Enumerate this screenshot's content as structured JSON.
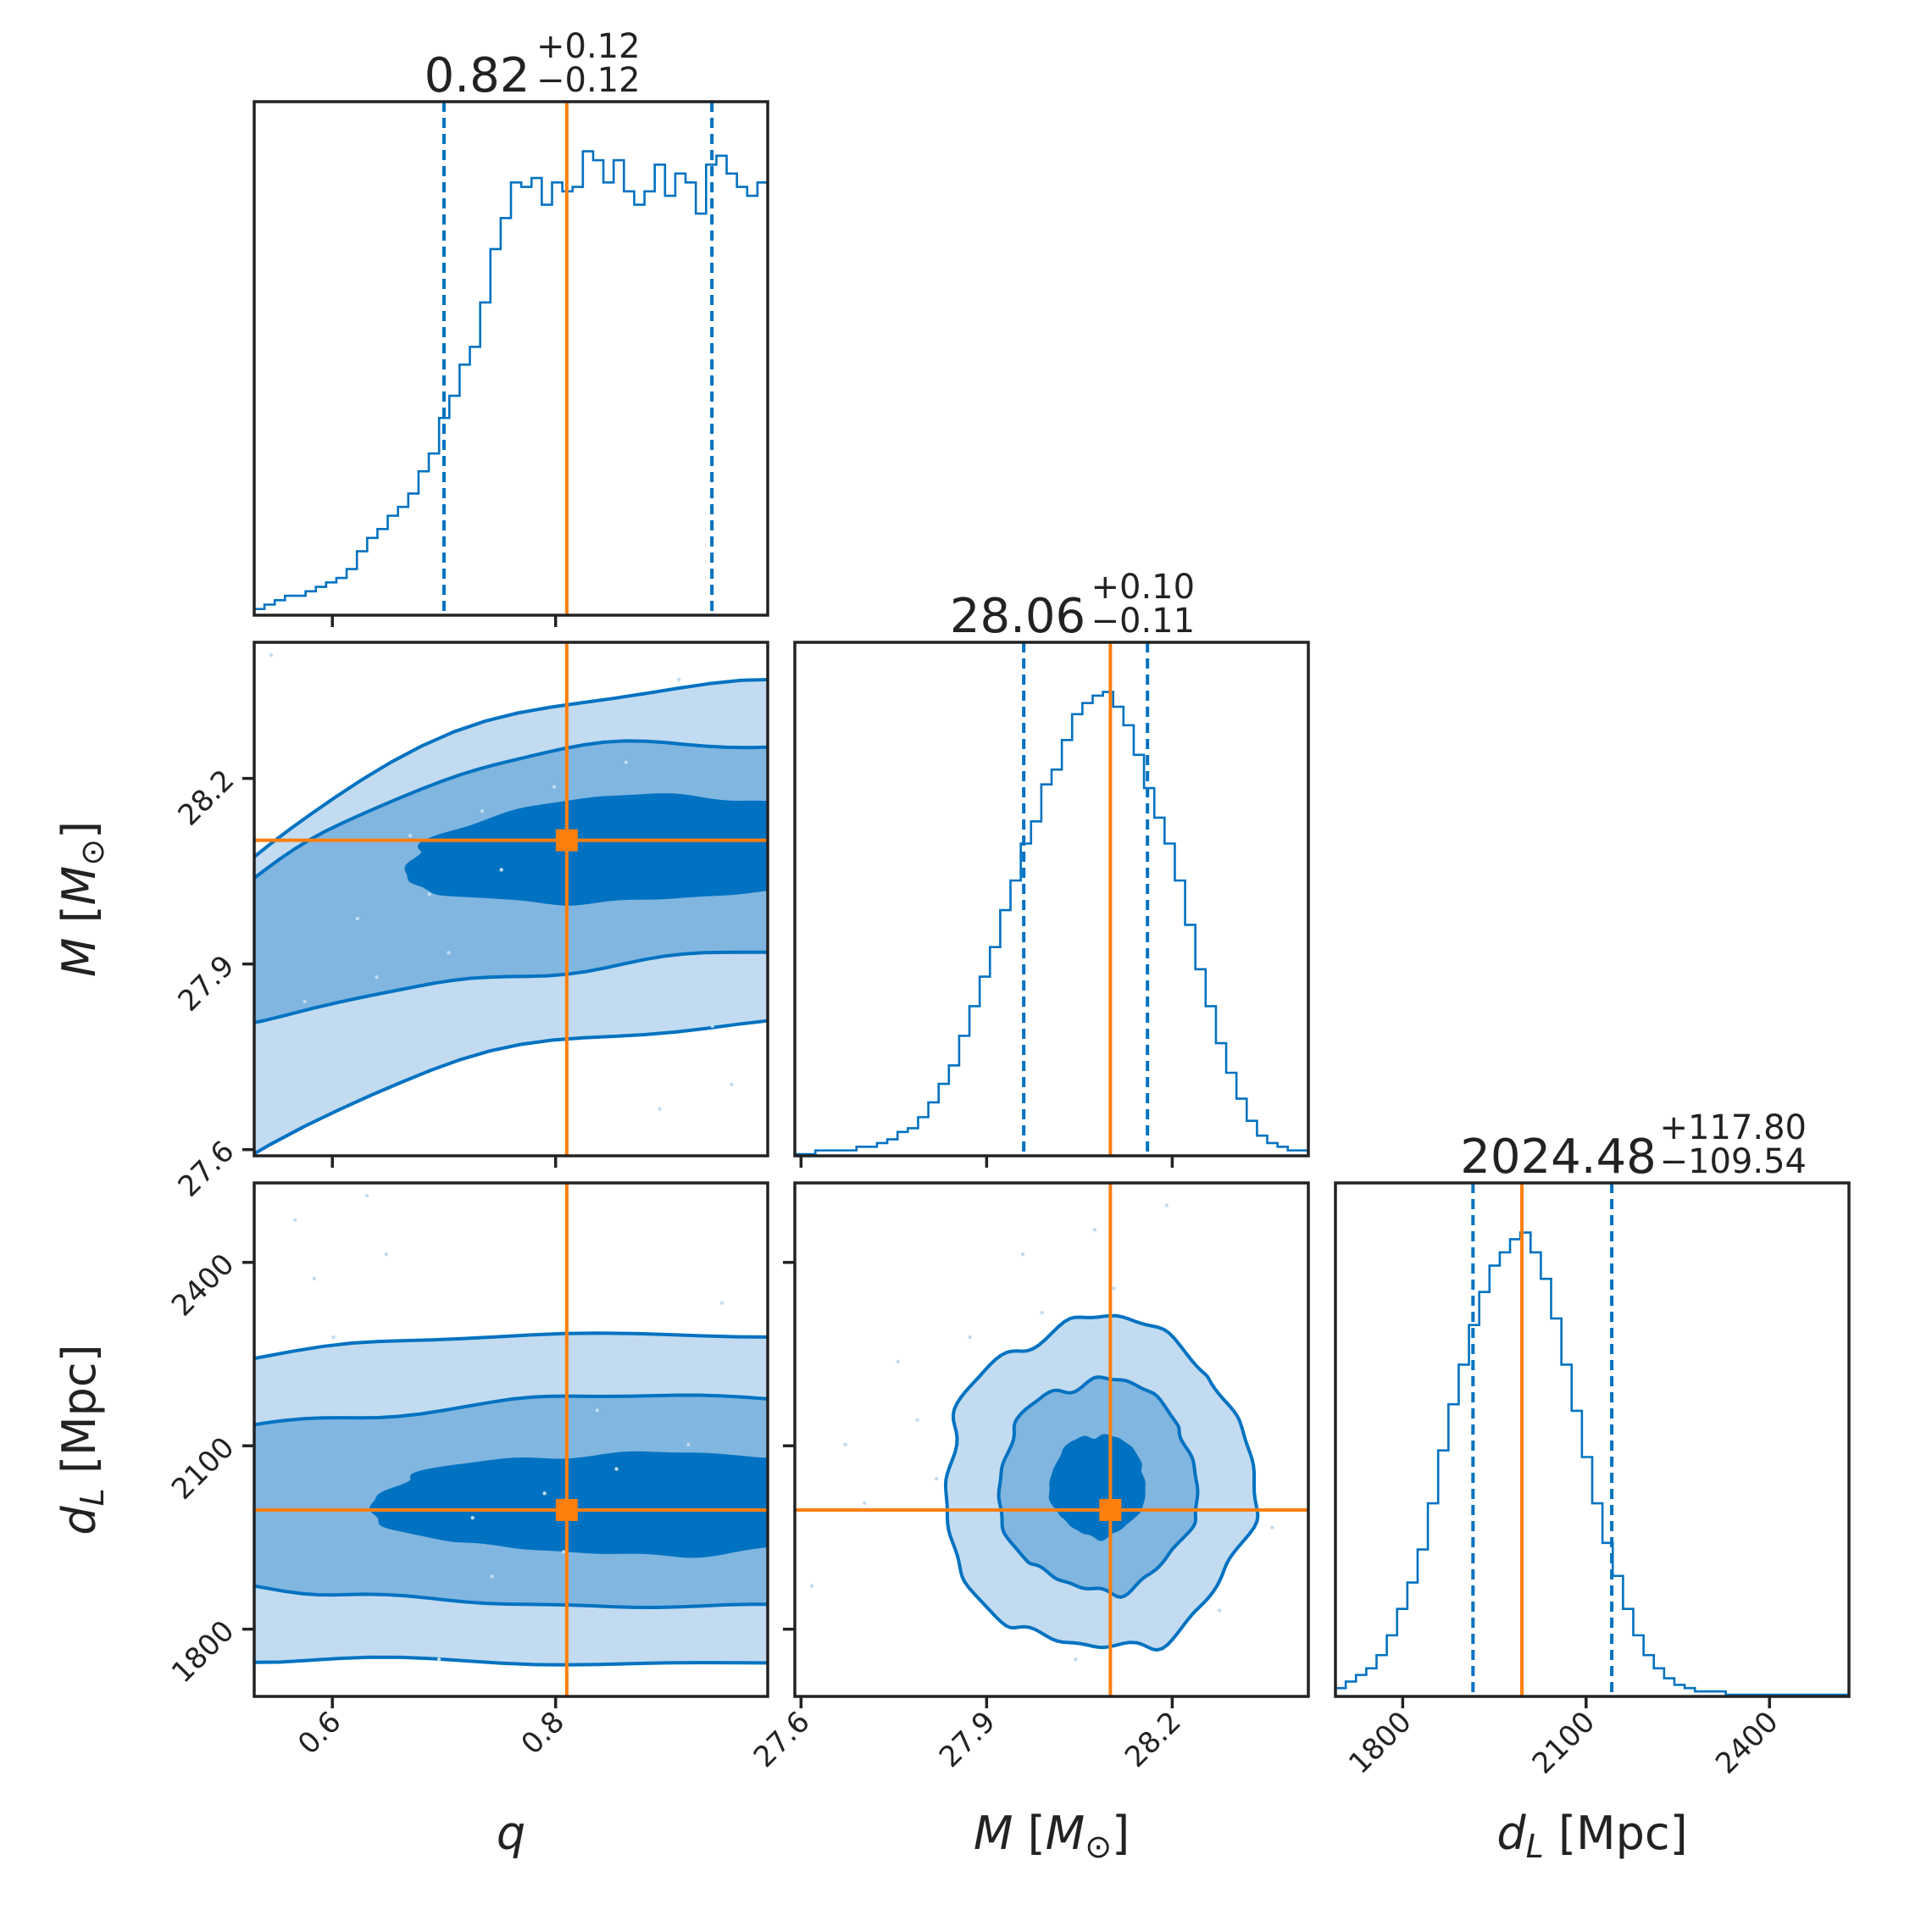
{
  "chart_data": {
    "type": "corner",
    "colors": {
      "primary": "#0072C1",
      "truth": "#FF7F0E",
      "contour_levels": [
        "#C2DBF0",
        "#80B6E0",
        "#0072C1"
      ]
    },
    "parameters": [
      {
        "key": "q",
        "label_main": "q",
        "label_sub": "",
        "label_unit": "",
        "range": [
          0.53,
          0.99
        ],
        "ticks": [
          "0.6",
          "0.8"
        ],
        "median": 0.82,
        "plus": 0.12,
        "minus": 0.12,
        "title_main": "0.82",
        "title_plus": "+0.12",
        "title_minus": "−0.12",
        "quantiles": [
          0.7,
          0.94
        ],
        "truth": 0.81,
        "hist": [
          1,
          2,
          3,
          4,
          4,
          5,
          6,
          7,
          8,
          10,
          14,
          17,
          19,
          22,
          24,
          27,
          32,
          36,
          44,
          49,
          56,
          60,
          70,
          82,
          89,
          97,
          96,
          98,
          92,
          97,
          95,
          96,
          104,
          102,
          97,
          102,
          95,
          92,
          95,
          101,
          94,
          99,
          97,
          90,
          101,
          103,
          99,
          96,
          94,
          97
        ]
      },
      {
        "key": "M",
        "label_main": "M",
        "label_sub": "",
        "label_unit": "M_sun",
        "range": [
          27.59,
          28.42
        ],
        "ticks": [
          "27.6",
          "27.9",
          "28.2"
        ],
        "median": 28.06,
        "plus": 0.1,
        "minus": 0.11,
        "title_main": "28.06",
        "title_plus": "+0.10",
        "title_minus": "−0.11",
        "quantiles": [
          27.96,
          28.16
        ],
        "truth": 28.1,
        "hist": [
          0,
          0,
          1,
          1,
          1,
          1,
          2,
          2,
          3,
          4,
          6,
          7,
          10,
          14,
          19,
          24,
          32,
          40,
          48,
          56,
          66,
          74,
          84,
          90,
          100,
          104,
          112,
          119,
          122,
          124,
          125,
          121,
          116,
          108,
          99,
          91,
          84,
          74,
          62,
          50,
          40,
          30,
          22,
          15,
          9,
          5,
          3,
          2,
          1,
          1
        ]
      },
      {
        "key": "dL",
        "label_main": "d",
        "label_sub": "L",
        "label_unit": "Mpc",
        "range": [
          1690,
          2530
        ],
        "ticks": [
          "1800",
          "2100",
          "2400"
        ],
        "median": 2024.48,
        "plus": 117.8,
        "minus": 109.54,
        "title_main": "2024.48",
        "title_plus": "+117.80",
        "title_minus": "−109.54",
        "quantiles": [
          1915,
          2142
        ],
        "truth": 1995,
        "hist": [
          2,
          4,
          6,
          8,
          12,
          18,
          26,
          34,
          44,
          58,
          74,
          88,
          100,
          112,
          122,
          130,
          134,
          138,
          140,
          134,
          126,
          114,
          100,
          86,
          72,
          58,
          46,
          36,
          26,
          18,
          12,
          8,
          5,
          3,
          2,
          1,
          1,
          1,
          0,
          0,
          0,
          0,
          0,
          0,
          0,
          0,
          0,
          0,
          0,
          0
        ]
      }
    ],
    "pairs": [
      {
        "x": "q",
        "y": "M",
        "corr": 0.55,
        "shape": "q_M"
      },
      {
        "x": "q",
        "y": "dL",
        "corr": 0.0,
        "shape": "q_dL"
      },
      {
        "x": "M",
        "y": "dL",
        "corr": 0.05,
        "shape": "gauss"
      }
    ]
  }
}
